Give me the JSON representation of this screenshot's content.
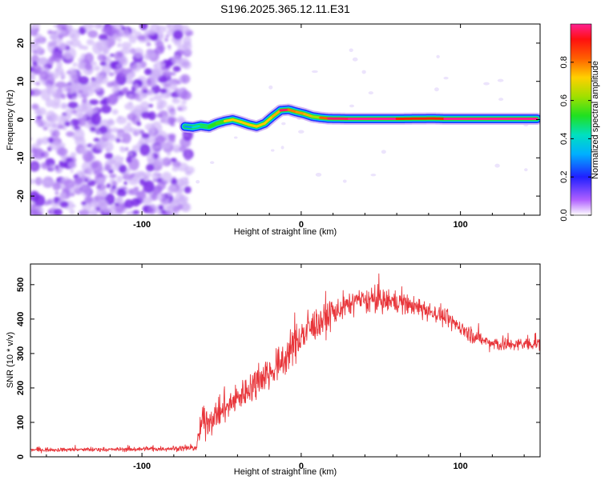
{
  "title": "S196.2025.365.12.11.E31",
  "chart_data": [
    {
      "type": "heatmap",
      "name": "spectrogram",
      "xlabel": "Height of straight line (km)",
      "ylabel": "Frequency (Hz)",
      "xlim": [
        -170,
        150
      ],
      "ylim": [
        -25,
        25
      ],
      "x_ticks": [
        -100,
        0,
        100
      ],
      "x_tick_labels": [
        "-100",
        "0",
        "100"
      ],
      "y_ticks": [
        -20,
        -10,
        0,
        10,
        20
      ],
      "y_tick_labels": [
        "-20",
        "-10",
        "0",
        "10",
        "20"
      ],
      "noise_region_x": [
        -170,
        -73
      ],
      "trace": {
        "x": [
          -73,
          -68,
          -63,
          -58,
          -53,
          -48,
          -43,
          -38,
          -33,
          -28,
          -23,
          -18,
          -13,
          -8,
          -3,
          2,
          7,
          12,
          17,
          30,
          60,
          83,
          90,
          120,
          148
        ],
        "y": [
          -1.8,
          -2.0,
          -1.6,
          -1.9,
          -1.0,
          -0.4,
          0.0,
          -0.6,
          -1.3,
          -1.8,
          -1.0,
          0.8,
          2.4,
          2.6,
          2.0,
          1.5,
          0.8,
          0.5,
          0.3,
          0.2,
          0.2,
          0.3,
          0.2,
          0.2,
          0.2
        ],
        "amp": [
          0.25,
          0.35,
          0.45,
          0.5,
          0.55,
          0.55,
          0.9,
          0.55,
          0.9,
          0.55,
          0.9,
          0.55,
          0.95,
          1.0,
          0.6,
          0.95,
          0.55,
          0.7,
          0.95,
          1.0,
          1.0,
          0.8,
          1.0,
          1.0,
          1.0
        ]
      },
      "colorbar": {
        "label": "Normalized spectral amplitude",
        "ticks": [
          0.0,
          0.2,
          0.4,
          0.6,
          0.8
        ],
        "tick_labels": [
          "0.0",
          "0.2",
          "0.4",
          "0.6",
          "0.8"
        ],
        "range": [
          0,
          1
        ]
      }
    },
    {
      "type": "line",
      "name": "snr",
      "xlabel": "Height of straight line (km)",
      "ylabel": "SNR (10 * v/v)",
      "xlim": [
        -170,
        150
      ],
      "ylim": [
        0,
        560
      ],
      "x_ticks": [
        -100,
        0,
        100
      ],
      "x_tick_labels": [
        "-100",
        "0",
        "100"
      ],
      "y_ticks": [
        0,
        100,
        200,
        300,
        400,
        500
      ],
      "y_tick_labels": [
        "0",
        "100",
        "200",
        "300",
        "400",
        "500"
      ],
      "series_color": "#e8353a",
      "envelope": {
        "x": [
          -170,
          -120,
          -66,
          -62,
          -55,
          -45,
          -35,
          -25,
          -15,
          -5,
          5,
          15,
          25,
          35,
          45,
          55,
          65,
          75,
          85,
          95,
          105,
          115,
          125,
          135,
          148
        ],
        "mean": [
          20,
          21,
          25,
          100,
          110,
          150,
          190,
          230,
          260,
          320,
          370,
          400,
          430,
          450,
          455,
          450,
          445,
          430,
          415,
          390,
          360,
          335,
          325,
          325,
          330
        ],
        "noise": [
          6,
          7,
          8,
          55,
          40,
          45,
          50,
          55,
          55,
          55,
          55,
          45,
          40,
          40,
          35,
          35,
          30,
          30,
          28,
          26,
          25,
          22,
          20,
          20,
          20
        ]
      }
    }
  ]
}
